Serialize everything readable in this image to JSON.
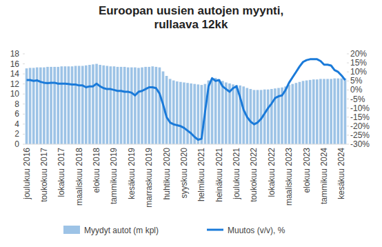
{
  "chart_data": {
    "type": "bar",
    "title": "Euroopan uusien autojen myynti, rullaava 12kk",
    "categories": [
      "joulukuu 2016",
      null,
      null,
      null,
      null,
      "toukokuu 2017",
      null,
      null,
      null,
      null,
      "lokakuu 2017",
      null,
      null,
      null,
      null,
      "maaliskuu 2018",
      null,
      null,
      null,
      null,
      "elokuu 2018",
      null,
      null,
      null,
      null,
      "tammikuu 2019",
      null,
      null,
      null,
      null,
      "kesäkuu 2019",
      null,
      null,
      null,
      null,
      "marraskuu 2019",
      null,
      null,
      null,
      null,
      "huhtikuu 2020",
      null,
      null,
      null,
      null,
      "syyskuu 2020",
      null,
      null,
      null,
      null,
      "helmikuu 2021",
      null,
      null,
      null,
      null,
      "heinäkuu 2021",
      null,
      null,
      null,
      null,
      "joulukuu 2021",
      null,
      null,
      null,
      null,
      "toukokuu 2022",
      null,
      null,
      null,
      null,
      "lokakuu 2022",
      null,
      null,
      null,
      null,
      "maaliskuu 2023",
      null,
      null,
      null,
      null,
      "elokuu 2023",
      null,
      null,
      null,
      null,
      "tammikuu 2024",
      null,
      null,
      null,
      null,
      "kesäkuu 2024",
      null
    ],
    "series": [
      {
        "name": "Myydyt autot (m kpl)",
        "type": "bar",
        "color": "#9DC3E6",
        "values": [
          15.1,
          15.2,
          15.2,
          15.3,
          15.3,
          15.3,
          15.4,
          15.4,
          15.4,
          15.4,
          15.5,
          15.5,
          15.5,
          15.5,
          15.6,
          15.6,
          15.6,
          15.7,
          15.8,
          15.9,
          16.0,
          15.8,
          15.7,
          15.6,
          15.5,
          15.5,
          15.4,
          15.4,
          15.4,
          15.3,
          15.3,
          15.3,
          15.2,
          15.3,
          15.4,
          15.4,
          15.5,
          15.4,
          15.3,
          14.5,
          13.6,
          13.0,
          12.7,
          12.5,
          12.4,
          12.3,
          12.2,
          12.1,
          12.0,
          11.9,
          11.8,
          12.0,
          12.7,
          13.0,
          13.2,
          12.9,
          12.6,
          12.3,
          12.1,
          11.9,
          11.8,
          11.7,
          11.5,
          11.2,
          11.0,
          10.8,
          10.8,
          10.8,
          10.9,
          10.9,
          11.0,
          11.1,
          11.2,
          11.3,
          11.5,
          11.8,
          12.0,
          12.2,
          12.4,
          12.6,
          12.7,
          12.8,
          12.9,
          12.9,
          13.0,
          13.0,
          13.0,
          13.0,
          13.1,
          13.1,
          13.1,
          13.1
        ]
      },
      {
        "name": "Muutos (v/v), %",
        "type": "line",
        "color": "#1A7AD9",
        "axis": "y2",
        "values": [
          5.5,
          5.5,
          5.0,
          5.3,
          4.5,
          4.0,
          3.8,
          4.0,
          4.0,
          3.5,
          3.5,
          3.5,
          3.3,
          3.0,
          3.0,
          2.5,
          2.5,
          1.5,
          2.0,
          2.0,
          3.5,
          2.0,
          1.0,
          0.5,
          0.5,
          0,
          -0.5,
          -0.5,
          -1,
          -1,
          -1.5,
          -3,
          -1,
          -0.5,
          0.5,
          1.5,
          1.5,
          1.0,
          -2.0,
          -8.0,
          -15.0,
          -18.0,
          -19.0,
          -19.5,
          -20.0,
          -21.0,
          -22.5,
          -24.0,
          -26.0,
          -27.5,
          -27.0,
          -12.0,
          2.0,
          6.5,
          5.0,
          5.5,
          2.0,
          0.5,
          -1.0,
          1.0,
          2.0,
          -4,
          -11,
          -15,
          -17.5,
          -19,
          -18,
          -16,
          -13,
          -10,
          -7.5,
          -4.5,
          -3.5,
          -3,
          0,
          4,
          7,
          10,
          13,
          15.5,
          16.5,
          17,
          17,
          17,
          16,
          14,
          14,
          13.5,
          11,
          10,
          8,
          5.5
        ]
      }
    ],
    "ylim": [
      0,
      18
    ],
    "yticks": [
      0,
      2,
      4,
      6,
      8,
      10,
      12,
      14,
      16,
      18
    ],
    "y2lim": [
      -30,
      20
    ],
    "y2ticks": [
      {
        "value": -30,
        "label": "-30%"
      },
      {
        "value": -25,
        "label": "-25%"
      },
      {
        "value": -20,
        "label": "-20%"
      },
      {
        "value": -15,
        "label": "-15%"
      },
      {
        "value": -10,
        "label": "-10%"
      },
      {
        "value": -5,
        "label": "-5%"
      },
      {
        "value": 0,
        "label": "0%"
      },
      {
        "value": 5,
        "label": "5%"
      },
      {
        "value": 10,
        "label": "10%"
      },
      {
        "value": 15,
        "label": "15%"
      },
      {
        "value": 20,
        "label": "20%"
      }
    ],
    "grid": false,
    "legend": "bottom"
  }
}
